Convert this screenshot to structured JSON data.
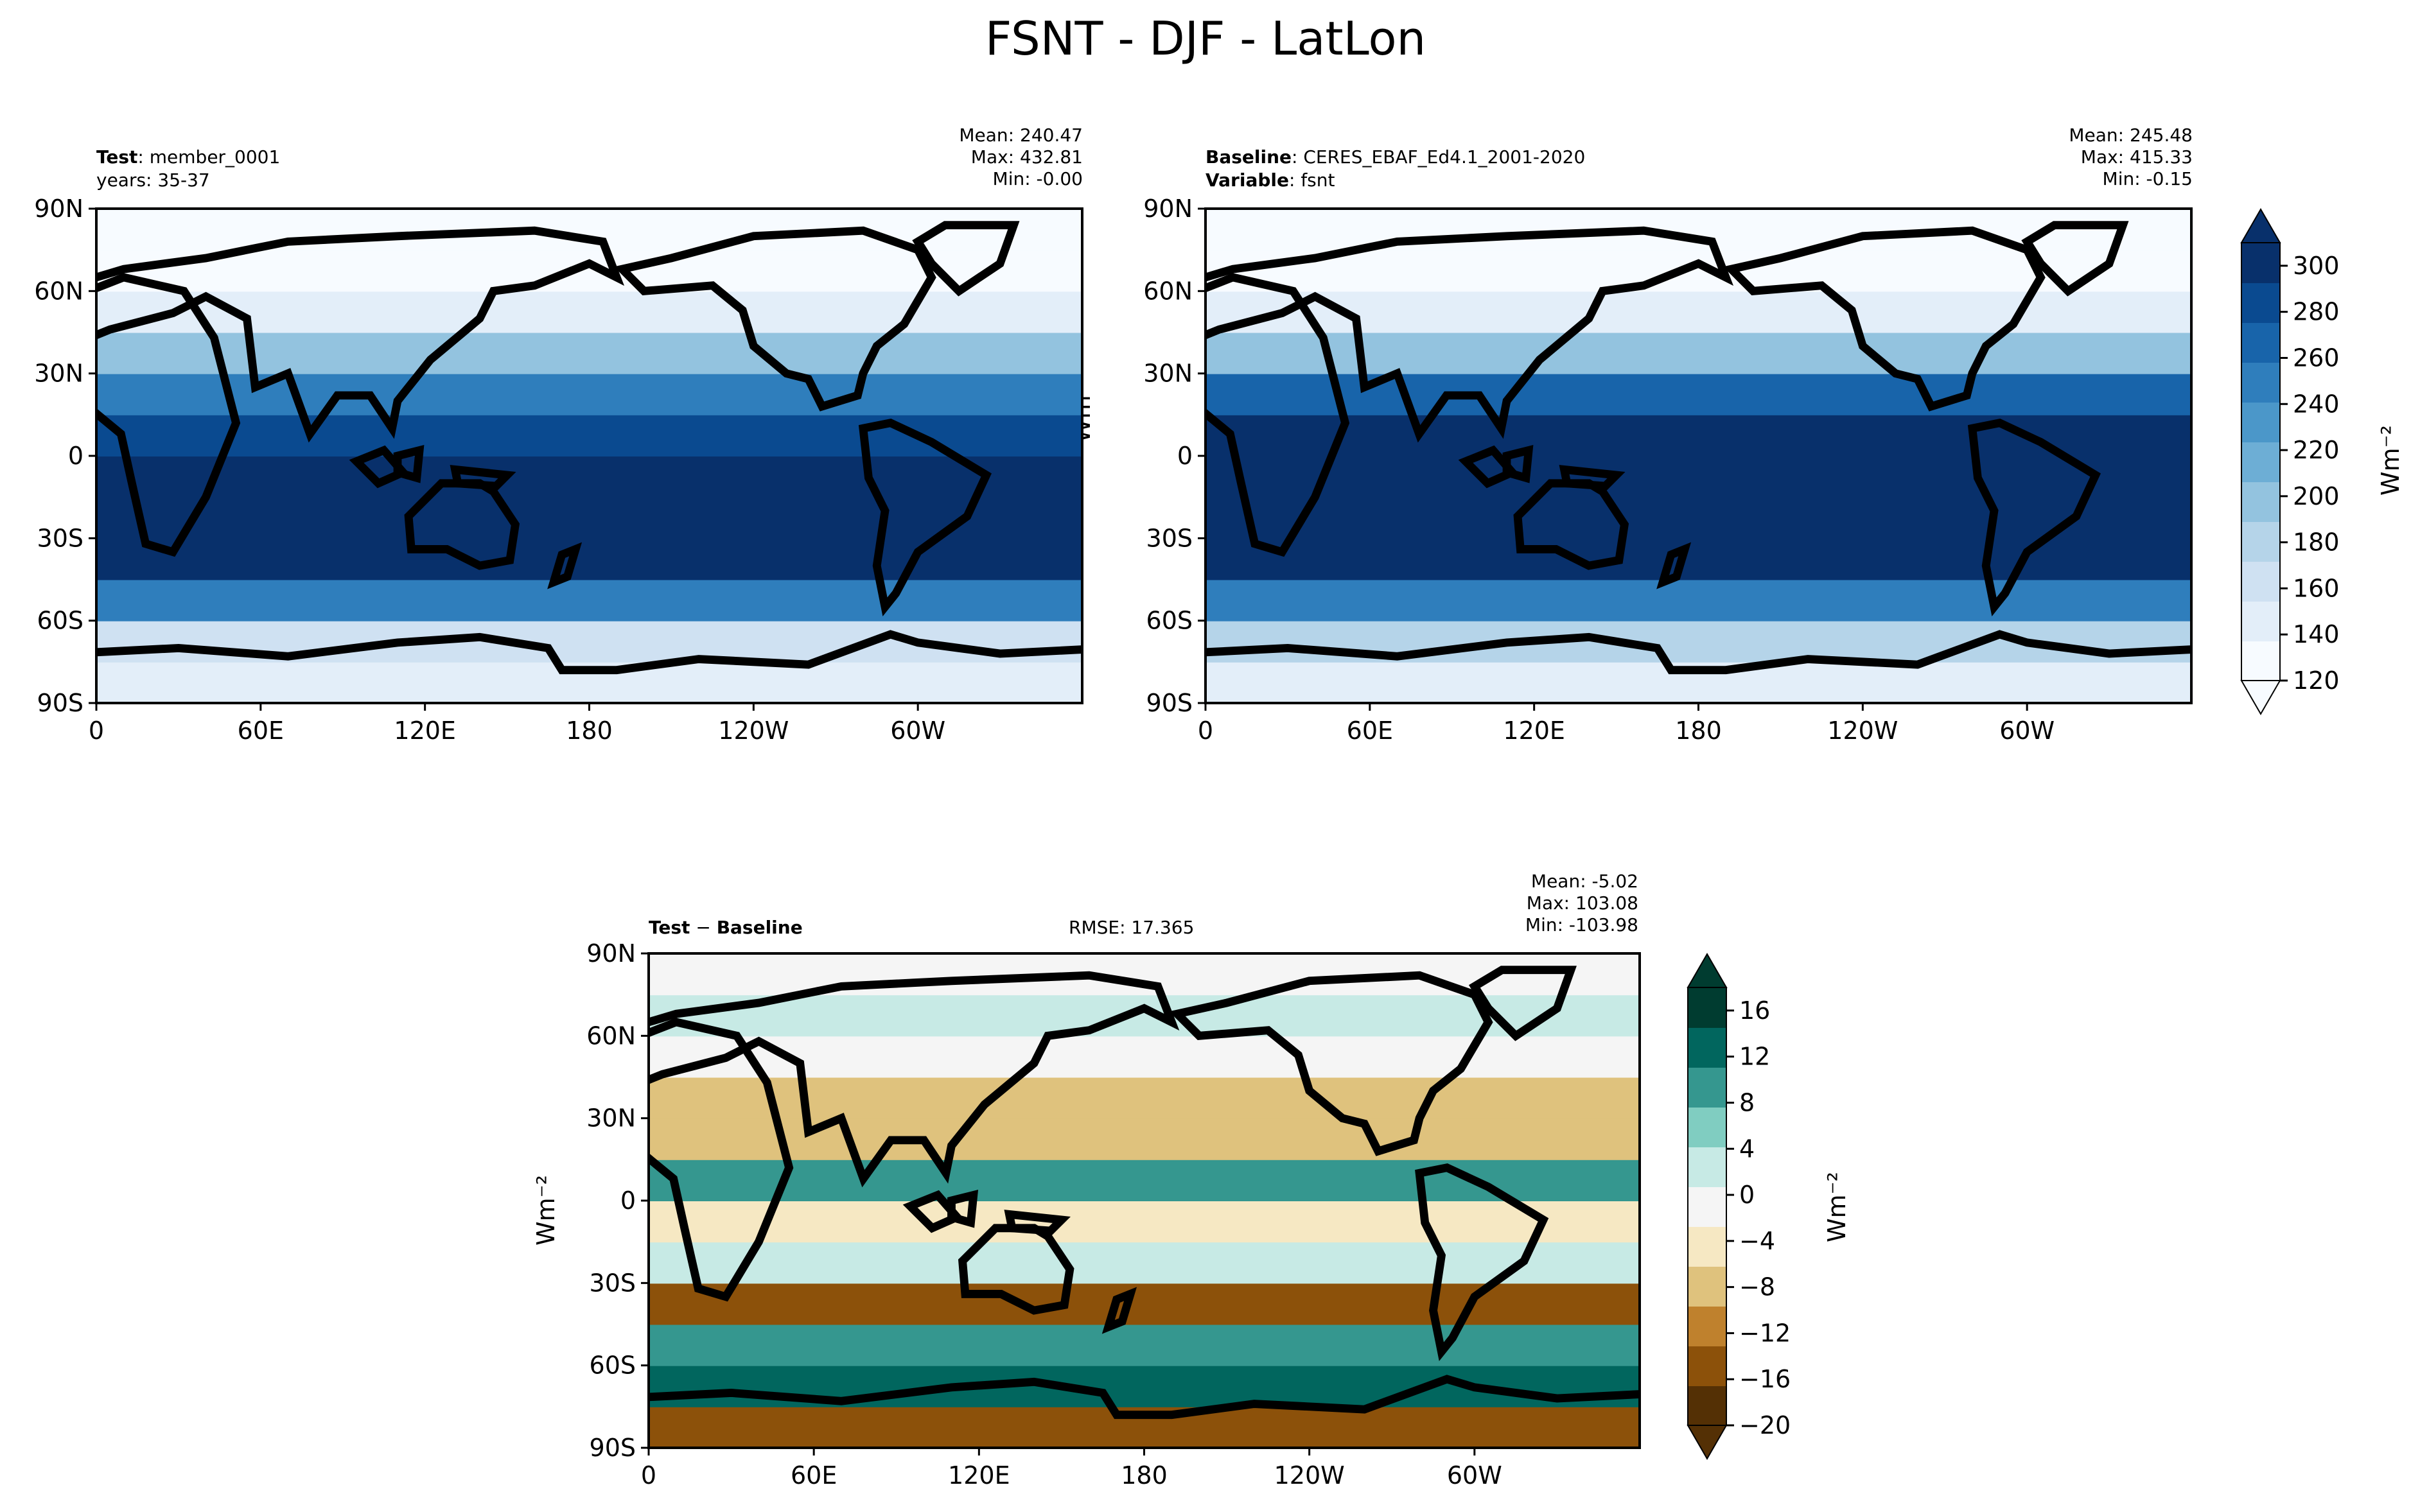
{
  "title": "FSNT - DJF - LatLon",
  "units_label": "Wm⁻²",
  "lat_ticks": [
    "90N",
    "60N",
    "30N",
    "0",
    "30S",
    "60S",
    "90S"
  ],
  "lon_ticks": [
    "0",
    "60E",
    "120E",
    "180",
    "120W",
    "60W"
  ],
  "panels": {
    "test": {
      "label_key": "Test",
      "label_value": "member_0001",
      "line2": "years: 35-37",
      "stats": [
        "Mean: 240.47",
        "Max: 432.81",
        "Min: -0.00"
      ]
    },
    "baseline": {
      "label_key": "Baseline",
      "label_value": "CERES_EBAF_Ed4.1_2001-2020",
      "line2_key": "Variable",
      "line2_value": "fsnt",
      "stats": [
        "Mean: 245.48",
        "Max: 415.33",
        "Min: -0.15"
      ]
    },
    "diff": {
      "label_a": "Test",
      "label_sep": " − ",
      "label_b": "Baseline",
      "rmse": "RMSE: 17.365",
      "stats": [
        "Mean: -5.02",
        "Max: 103.08",
        "Min: -103.98"
      ]
    }
  },
  "colors": {
    "blues_scale": [
      "#f7fbff",
      "#e3eef9",
      "#cfe1f2",
      "#b5d4e9",
      "#93c3df",
      "#6daed5",
      "#4b97c9",
      "#2f7ebc",
      "#1864aa",
      "#0a4a90",
      "#08306b"
    ],
    "brbg_scale": [
      "#543005",
      "#8c510a",
      "#bf812d",
      "#dfc27d",
      "#f6e8c3",
      "#f5f5f5",
      "#c7eae5",
      "#80cdc1",
      "#35978f",
      "#01665e",
      "#003c30"
    ]
  },
  "chart_data": [
    {
      "type": "heatmap",
      "name": "test",
      "title": "Test: member_0001",
      "variable": "FSNT",
      "season": "DJF",
      "xlabel": "",
      "ylabel": "",
      "x_ticks": [
        "0",
        "60E",
        "120E",
        "180",
        "120W",
        "60W"
      ],
      "y_ticks": [
        "90N",
        "60N",
        "30N",
        "0",
        "30S",
        "60S",
        "90S"
      ],
      "lat_bands": [
        -90,
        -75,
        -60,
        -45,
        -30,
        -15,
        0,
        15,
        30,
        45,
        60,
        75
      ],
      "band_values": [
        130,
        165,
        250,
        310,
        310,
        310,
        300,
        260,
        190,
        140,
        120,
        120
      ],
      "mean": 240.47,
      "max": 432.81,
      "min": -0.0
    },
    {
      "type": "heatmap",
      "name": "baseline",
      "title": "Baseline: CERES_EBAF_Ed4.1_2001-2020",
      "variable": "fsnt",
      "x_ticks": [
        "0",
        "60E",
        "120E",
        "180",
        "120W",
        "60W"
      ],
      "y_ticks": [
        "90N",
        "60N",
        "30N",
        "0",
        "30S",
        "60S",
        "90S"
      ],
      "lat_bands": [
        -90,
        -75,
        -60,
        -45,
        -30,
        -15,
        0,
        15,
        30,
        45,
        60,
        75
      ],
      "band_values": [
        140,
        170,
        245,
        310,
        310,
        310,
        305,
        270,
        200,
        140,
        120,
        120
      ],
      "mean": 245.48,
      "max": 415.33,
      "min": -0.15,
      "colorbar": {
        "label": "Wm⁻²",
        "range": [
          120,
          310
        ],
        "ticks": [
          120,
          140,
          160,
          180,
          200,
          220,
          240,
          260,
          280,
          300
        ],
        "extend": "both"
      }
    },
    {
      "type": "heatmap",
      "name": "difference",
      "title": "Test − Baseline",
      "rmse": 17.365,
      "x_ticks": [
        "0",
        "60E",
        "120E",
        "180",
        "120W",
        "60W"
      ],
      "y_ticks": [
        "90N",
        "60N",
        "30N",
        "0",
        "30S",
        "60S",
        "90S"
      ],
      "lat_bands": [
        -90,
        -75,
        -60,
        -45,
        -30,
        -15,
        0,
        15,
        30,
        45,
        60,
        75
      ],
      "band_values": [
        -18,
        16,
        10,
        -16,
        4,
        -6,
        12,
        -10,
        -8,
        -2,
        2,
        0
      ],
      "mean": -5.02,
      "max": 103.08,
      "min": -103.98,
      "colorbar": {
        "label": "Wm⁻²",
        "range": [
          -20,
          18
        ],
        "ticks": [
          -20,
          -16,
          -12,
          -8,
          -4,
          0,
          4,
          8,
          12,
          16
        ],
        "extend": "both"
      }
    }
  ]
}
